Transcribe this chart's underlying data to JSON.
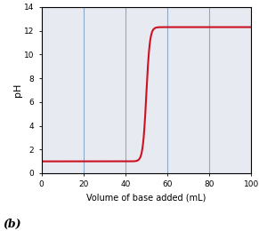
{
  "title": "",
  "xlabel": "Volume of base added (mL)",
  "ylabel": "pH",
  "label_b": "(b)",
  "xlim": [
    0,
    100
  ],
  "ylim": [
    0,
    14
  ],
  "xticks": [
    0,
    20,
    40,
    60,
    80,
    100
  ],
  "yticks": [
    0,
    2,
    4,
    6,
    8,
    10,
    12,
    14
  ],
  "background_color": "#e8eaf2",
  "vline_color": "#8aaac8",
  "vline_positions": [
    20,
    40,
    60,
    80
  ],
  "curve_color": "#cc1122",
  "curve_linewidth": 1.5,
  "equivalence_volume": 50.0,
  "initial_ph": 1.0,
  "final_ph": 12.3,
  "steepness": 1.2,
  "figsize": [
    2.91,
    2.6
  ],
  "dpi": 100
}
